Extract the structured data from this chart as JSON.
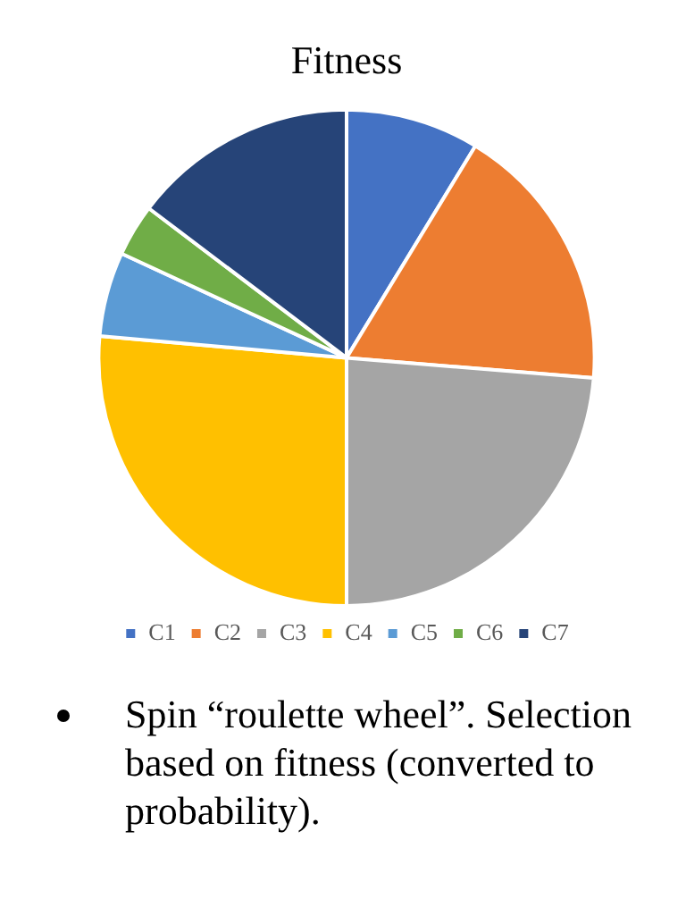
{
  "chart_data": {
    "type": "pie",
    "title": "Fitness",
    "categories": [
      "C1",
      "C2",
      "C3",
      "C4",
      "C5",
      "C6",
      "C7"
    ],
    "values": [
      8.7,
      17.6,
      23.7,
      26.4,
      5.5,
      3.4,
      14.7
    ],
    "colors": [
      "#4472c4",
      "#ed7d31",
      "#a5a5a5",
      "#ffc000",
      "#5b9bd5",
      "#70ad47",
      "#264478"
    ],
    "legend": "bottom",
    "annotations": [
      "Spin “roulette wheel”. Selection based on fitness (converted to probability)."
    ]
  }
}
